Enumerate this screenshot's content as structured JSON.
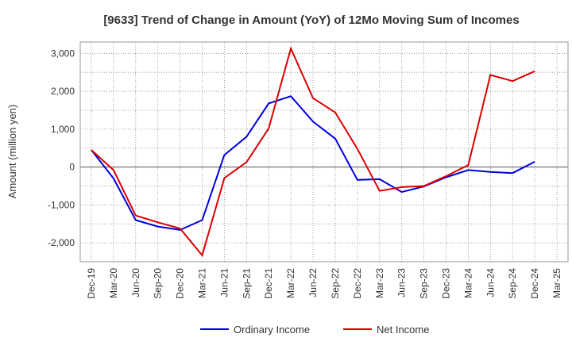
{
  "chart_data": {
    "type": "line",
    "title": "[9633]  Trend of Change in Amount (YoY) of 12Mo Moving Sum of Incomes",
    "ylabel": "Amount (million yen)",
    "xlabel": "",
    "ylim": [
      -2500,
      3300
    ],
    "yticks": [
      -2000,
      -1000,
      0,
      1000,
      2000,
      3000
    ],
    "ytick_labels": [
      "-2,000",
      "-1,000",
      "0",
      "1,000",
      "2,000",
      "3,000"
    ],
    "categories": [
      "Dec-19",
      "Mar-20",
      "Jun-20",
      "Sep-20",
      "Dec-20",
      "Mar-21",
      "Jun-21",
      "Sep-21",
      "Dec-21",
      "Mar-22",
      "Jun-22",
      "Sep-22",
      "Dec-22",
      "Mar-23",
      "Jun-23",
      "Sep-23",
      "Dec-23",
      "Mar-24",
      "Jun-24",
      "Sep-24",
      "Dec-24",
      "Mar-25"
    ],
    "x_tick_labels": [
      "Dec-19",
      "Mar-20",
      "Jun-20",
      "Sep-20",
      "Dec-20",
      "Mar-21",
      "Jun-21",
      "Sep-21",
      "Dec-21",
      "Mar-22",
      "Jun-22",
      "Sep-22",
      "Dec-22",
      "Mar-23",
      "Jun-23",
      "Sep-23",
      "Dec-23",
      "Mar-24",
      "Jun-24",
      "Sep-24",
      "Dec-24",
      "Mar-25"
    ],
    "grid": true,
    "legend_position": "bottom",
    "series": [
      {
        "name": "Ordinary Income",
        "color": "#0000dd",
        "values": [
          450,
          -300,
          -1400,
          -1570,
          -1660,
          -1400,
          320,
          800,
          1680,
          1870,
          1200,
          750,
          -340,
          -320,
          -660,
          -510,
          -270,
          -80,
          -130,
          -160,
          140,
          null
        ]
      },
      {
        "name": "Net Income",
        "color": "#dd0000",
        "values": [
          450,
          -80,
          -1280,
          -1460,
          -1620,
          -2330,
          -290,
          130,
          1020,
          3130,
          1820,
          1440,
          480,
          -630,
          -530,
          -500,
          -240,
          50,
          2430,
          2270,
          2530,
          null
        ]
      }
    ]
  }
}
